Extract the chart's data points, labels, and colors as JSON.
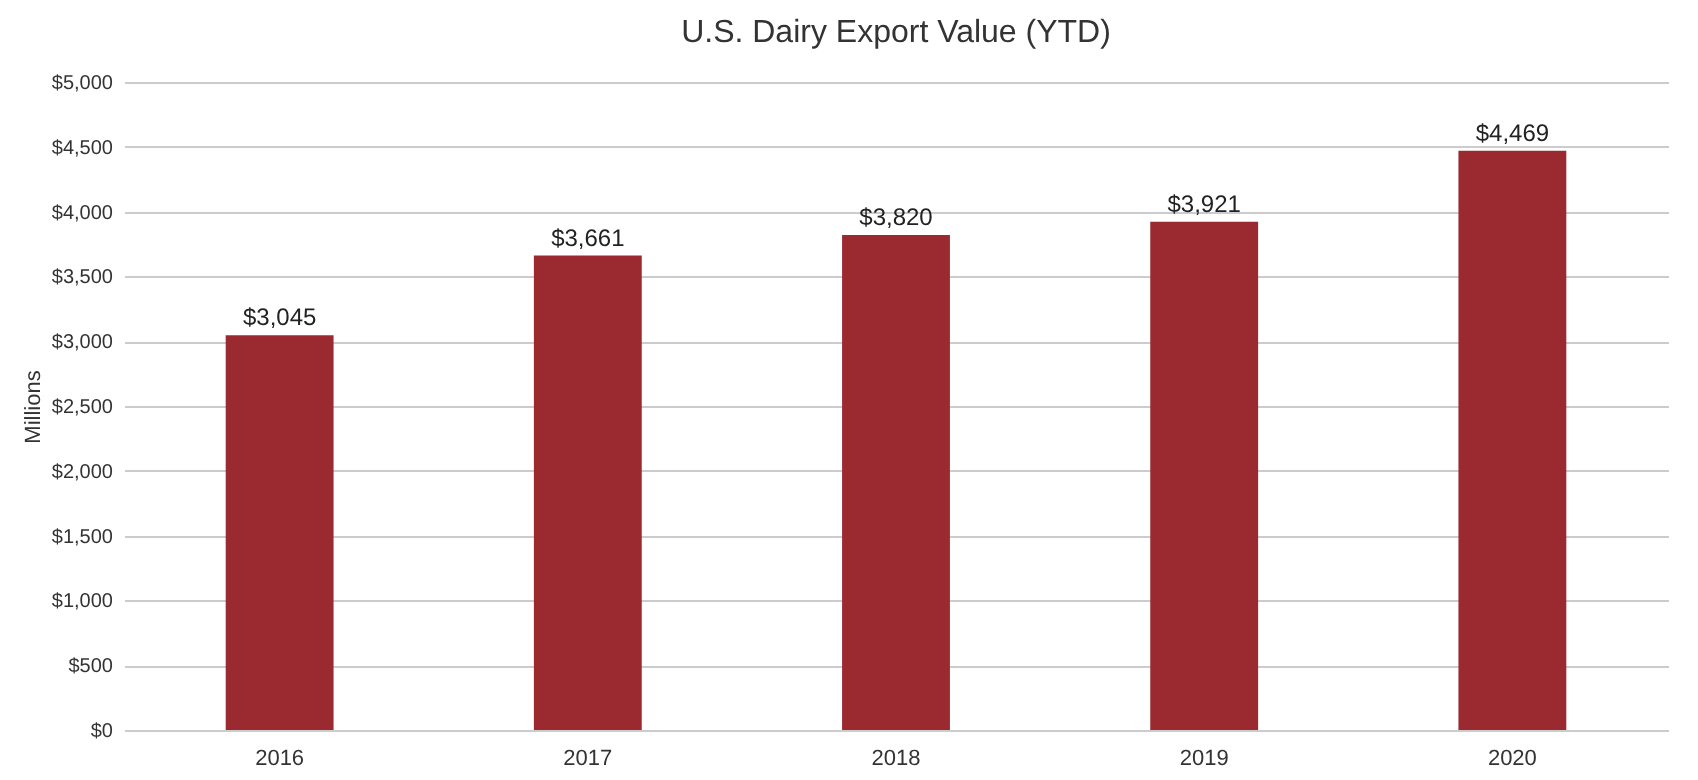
{
  "chart_data": {
    "type": "bar",
    "title": "U.S. Dairy Export Value (YTD)",
    "ylabel": "Millions",
    "categories": [
      "2016",
      "2017",
      "2018",
      "2019",
      "2020"
    ],
    "values": [
      3045,
      3661,
      3820,
      3921,
      4469
    ],
    "value_labels": [
      "$3,045",
      "$3,661",
      "$3,820",
      "$3,921",
      "$4,469"
    ],
    "color": "#9b2a30",
    "ylim": [
      0,
      5000
    ],
    "yticks": [
      {
        "value": 0,
        "label": "$0"
      },
      {
        "value": 500,
        "label": "$500"
      },
      {
        "value": 1000,
        "label": "$1,000"
      },
      {
        "value": 1500,
        "label": "$1,500"
      },
      {
        "value": 2000,
        "label": "$2,000"
      },
      {
        "value": 2500,
        "label": "$2,500"
      },
      {
        "value": 3000,
        "label": "$3,000"
      },
      {
        "value": 3500,
        "label": "$3,500"
      },
      {
        "value": 4000,
        "label": "$4,000"
      },
      {
        "value": 4500,
        "label": "$4,500"
      },
      {
        "value": 5000,
        "label": "$5,000"
      }
    ],
    "grid": "y"
  }
}
